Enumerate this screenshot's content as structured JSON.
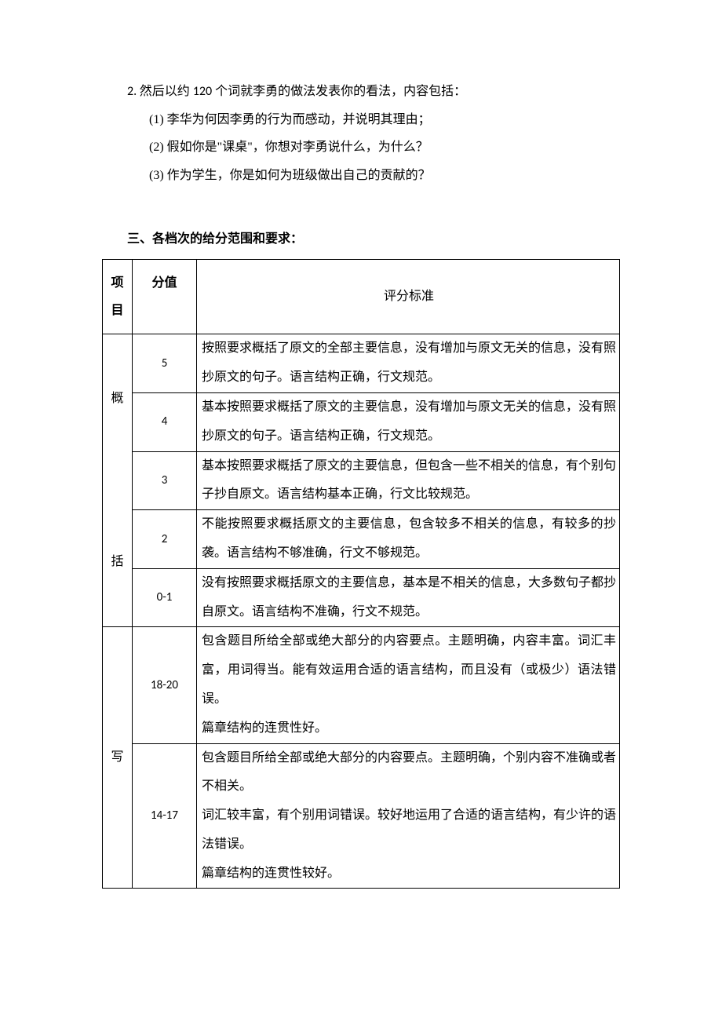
{
  "intro": {
    "line1_prefix": "2. ",
    "line1_body": "然后以约 ",
    "line1_num": "120",
    "line1_tail": " 个词就李勇的做法发表你的看法，内容包括：",
    "sub1": "(1) 李华为何因李勇的行为而感动，并说明其理由；",
    "sub2": "(2) 假如你是\"课桌\"，你想对李勇说什么，为什么？",
    "sub3": "(3) 作为学生，你是如何为班级做出自己的贡献的？"
  },
  "section_heading": "三、各档次的给分范围和要求：",
  "table": {
    "headers": {
      "item": "项目",
      "score": "分值",
      "criteria": "评分标准"
    },
    "group1_label": "概括",
    "group2_label": "写",
    "r1": {
      "score": "5",
      "text": "按照要求概括了原文的全部主要信息，没有增加与原文无关的信息，没有照抄原文的句子。语言结构正确，行文规范。"
    },
    "r2": {
      "score": "4",
      "text": "基本按照要求概括了原文的主要信息，没有增加与原文无关的信息，没有照抄原文的句子。语言结构正确，行文规范。"
    },
    "r3": {
      "score": "3",
      "text": "基本按照要求概括了原文的主要信息，但包含一些不相关的信息，有个别句子抄自原文。语言结构基本正确，行文比较规范。"
    },
    "r4": {
      "score": "2",
      "text": "不能按照要求概括原文的主要信息，包含较多不相关的信息，有较多的抄袭。语言结构不够准确，行文不够规范。"
    },
    "r5": {
      "score": "0-1",
      "text": "没有按照要求概括原文的主要信息，基本是不相关的信息，大多数句子都抄自原文。语言结构不准确，行文不规范。"
    },
    "r6": {
      "score": "18-20",
      "text": "包含题目所给全部或绝大部分的内容要点。主题明确，内容丰富。词汇丰富，用词得当。能有效运用合适的语言结构，而且没有（或极少）语法错误。\n篇章结构的连贯性好。"
    },
    "r7": {
      "score": "14-17",
      "text": "包含题目所给全部或绝大部分的内容要点。主题明确，个别内容不准确或者不相关。\n词汇较丰富，有个别用词错误。较好地运用了合适的语言结构，有少许的语法错误。\n篇章结构的连贯性较好。"
    }
  },
  "colors": {
    "text": "#000000",
    "background": "#ffffff",
    "border": "#000000"
  }
}
